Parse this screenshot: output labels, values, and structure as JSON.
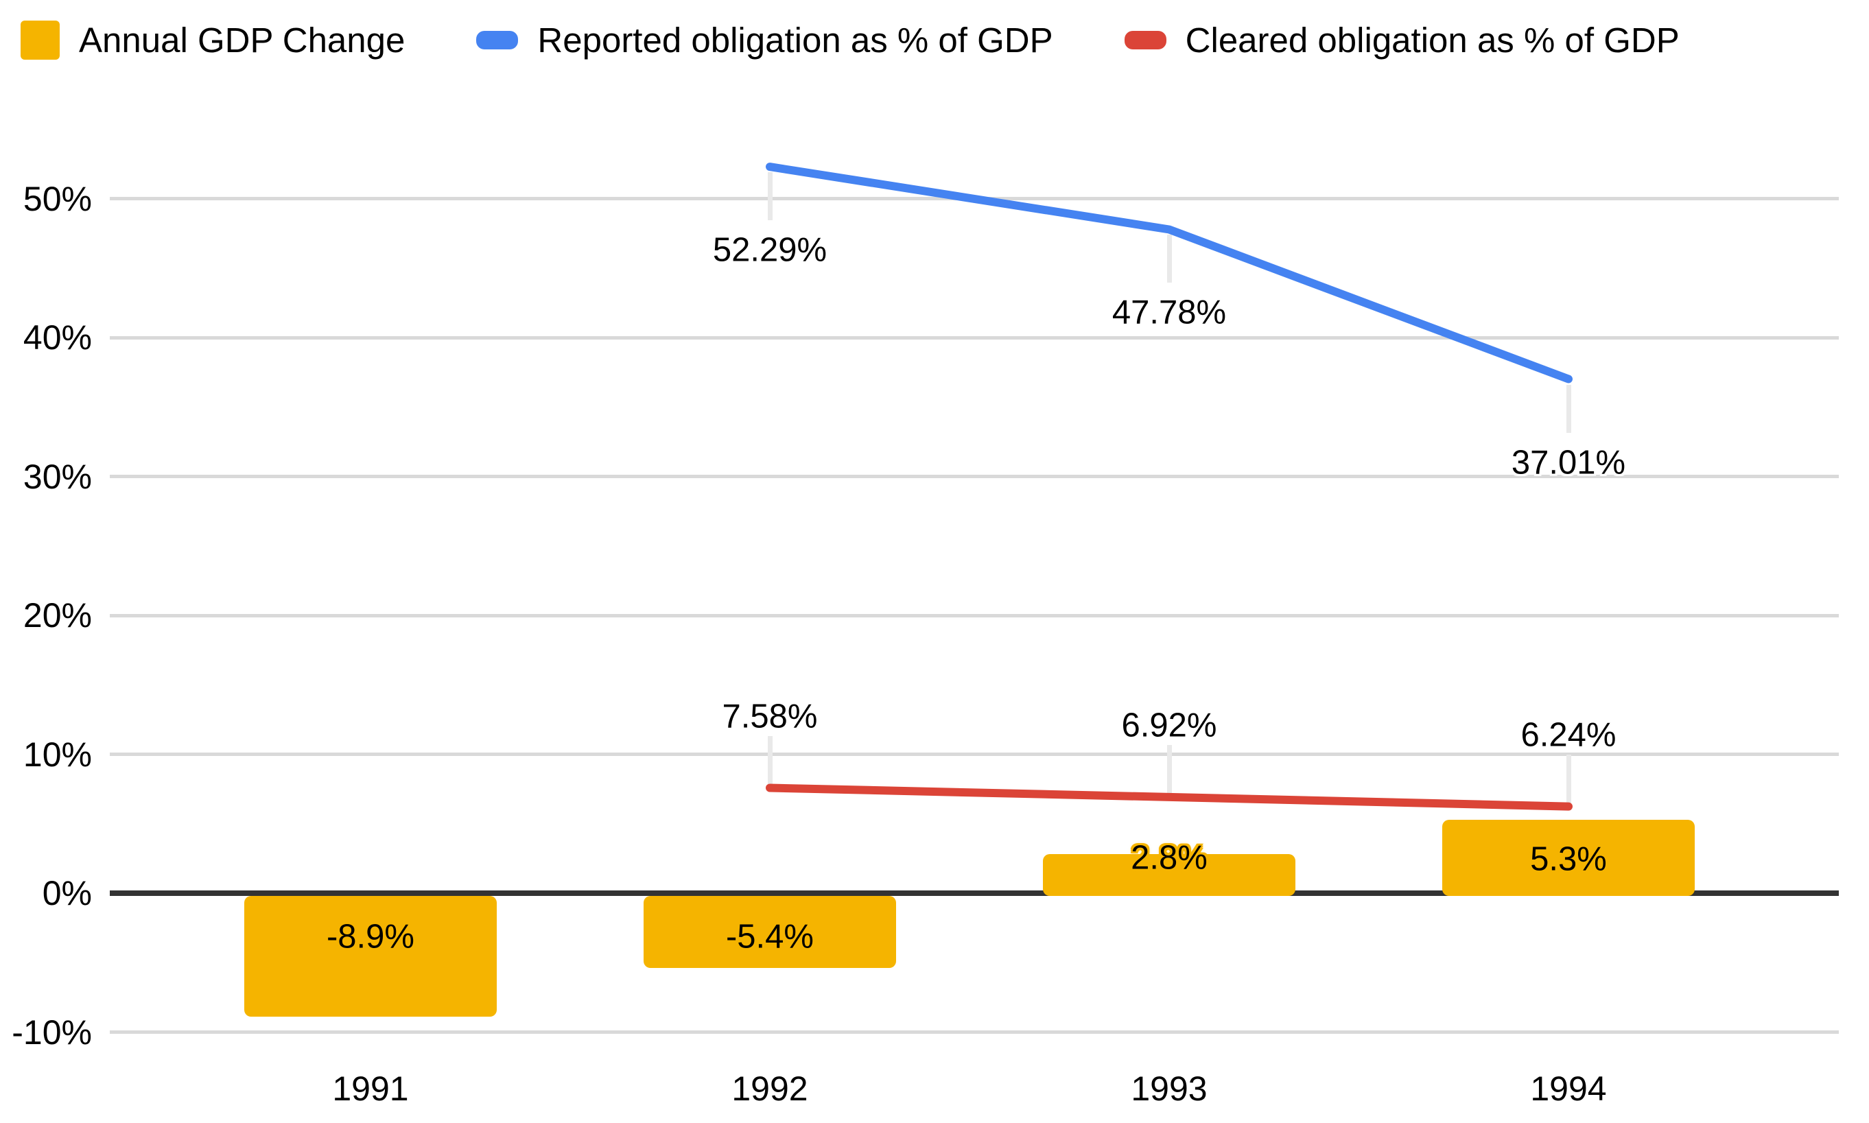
{
  "legend": [
    {
      "label": "Annual GDP Change",
      "color": "#F5B400",
      "marker": "bar"
    },
    {
      "label": "Reported obligation as % of GDP",
      "color": "#4583F1",
      "marker": "line"
    },
    {
      "label": "Cleared obligation as % of GDP",
      "color": "#DB4437",
      "marker": "line"
    }
  ],
  "chart_data": {
    "type": "combo",
    "categories": [
      "1991",
      "1992",
      "1993",
      "1994"
    ],
    "y_axis": {
      "min": -10,
      "max": 50,
      "ticks": [
        {
          "v": -10,
          "label": "-10%"
        },
        {
          "v": 0,
          "label": "0%"
        },
        {
          "v": 10,
          "label": "10%"
        },
        {
          "v": 20,
          "label": "20%"
        },
        {
          "v": 30,
          "label": "30%"
        },
        {
          "v": 40,
          "label": "40%"
        },
        {
          "v": 50,
          "label": "50%"
        }
      ]
    },
    "grid": true,
    "legend_position": "top",
    "series": [
      {
        "name": "Annual GDP Change",
        "type": "bar",
        "color": "#F5B400",
        "values": [
          -8.9,
          -5.4,
          2.8,
          5.3
        ],
        "labels": [
          "-8.9%",
          "-5.4%",
          "2.8%",
          "5.3%"
        ]
      },
      {
        "name": "Reported obligation as % of GDP",
        "type": "line",
        "color": "#4583F1",
        "label_position": "below",
        "values": [
          null,
          52.29,
          47.78,
          37.01
        ],
        "labels": [
          null,
          "52.29%",
          "47.78%",
          "37.01%"
        ]
      },
      {
        "name": "Cleared obligation as % of GDP",
        "type": "line",
        "color": "#DB4437",
        "label_position": "above",
        "values": [
          null,
          7.58,
          6.92,
          6.24
        ],
        "labels": [
          null,
          "7.58%",
          "6.92%",
          "6.24%"
        ]
      }
    ],
    "colors": {
      "grid": "#D9D9D9",
      "axis": "#333333",
      "leader": "#E9E9E9",
      "text": "#000000",
      "background": "#FFFFFF"
    }
  }
}
